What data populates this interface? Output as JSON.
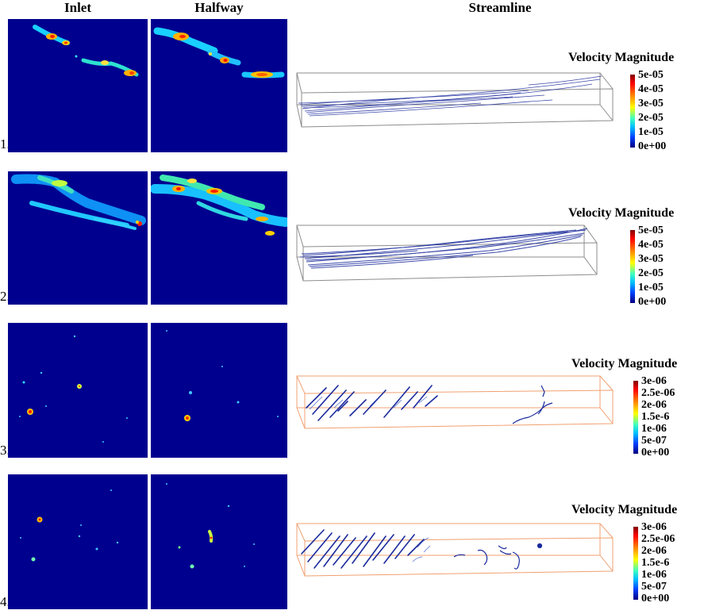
{
  "headers": {
    "inlet": "Inlet",
    "halfway": "Halfway",
    "streamline": "Streamline"
  },
  "rows": [
    {
      "number": "1.",
      "legend": {
        "title": "Velocity Magnitude",
        "ticks": [
          "5e-05",
          "4e-05",
          "3e-05",
          "2e-05",
          "1e-05",
          "0e+00"
        ]
      }
    },
    {
      "number": "2.",
      "legend": {
        "title": "Velocity Magnitude",
        "ticks": [
          "5e-05",
          "4e-05",
          "3e-05",
          "2e-05",
          "1e-05",
          "0e+00"
        ]
      }
    },
    {
      "number": "3.",
      "legend": {
        "title": "Velocity Magnitude",
        "ticks": [
          "3e-06",
          "2.5e-06",
          "2e-06",
          "1.5e-6",
          "1e-06",
          "5e-07",
          "0e+00"
        ]
      }
    },
    {
      "number": "4.",
      "legend": {
        "title": "Velocity Magnitude",
        "ticks": [
          "3e-06",
          "2.5e-06",
          "2e-06",
          "1.5e-6",
          "1e-06",
          "5e-07",
          "0e+00"
        ]
      }
    }
  ],
  "colors": {
    "background": "#00008f",
    "box_rows_1_2": "#8c8c8c",
    "box_rows_3_4": "#f0a070",
    "streamline": "#1a2a9c"
  }
}
